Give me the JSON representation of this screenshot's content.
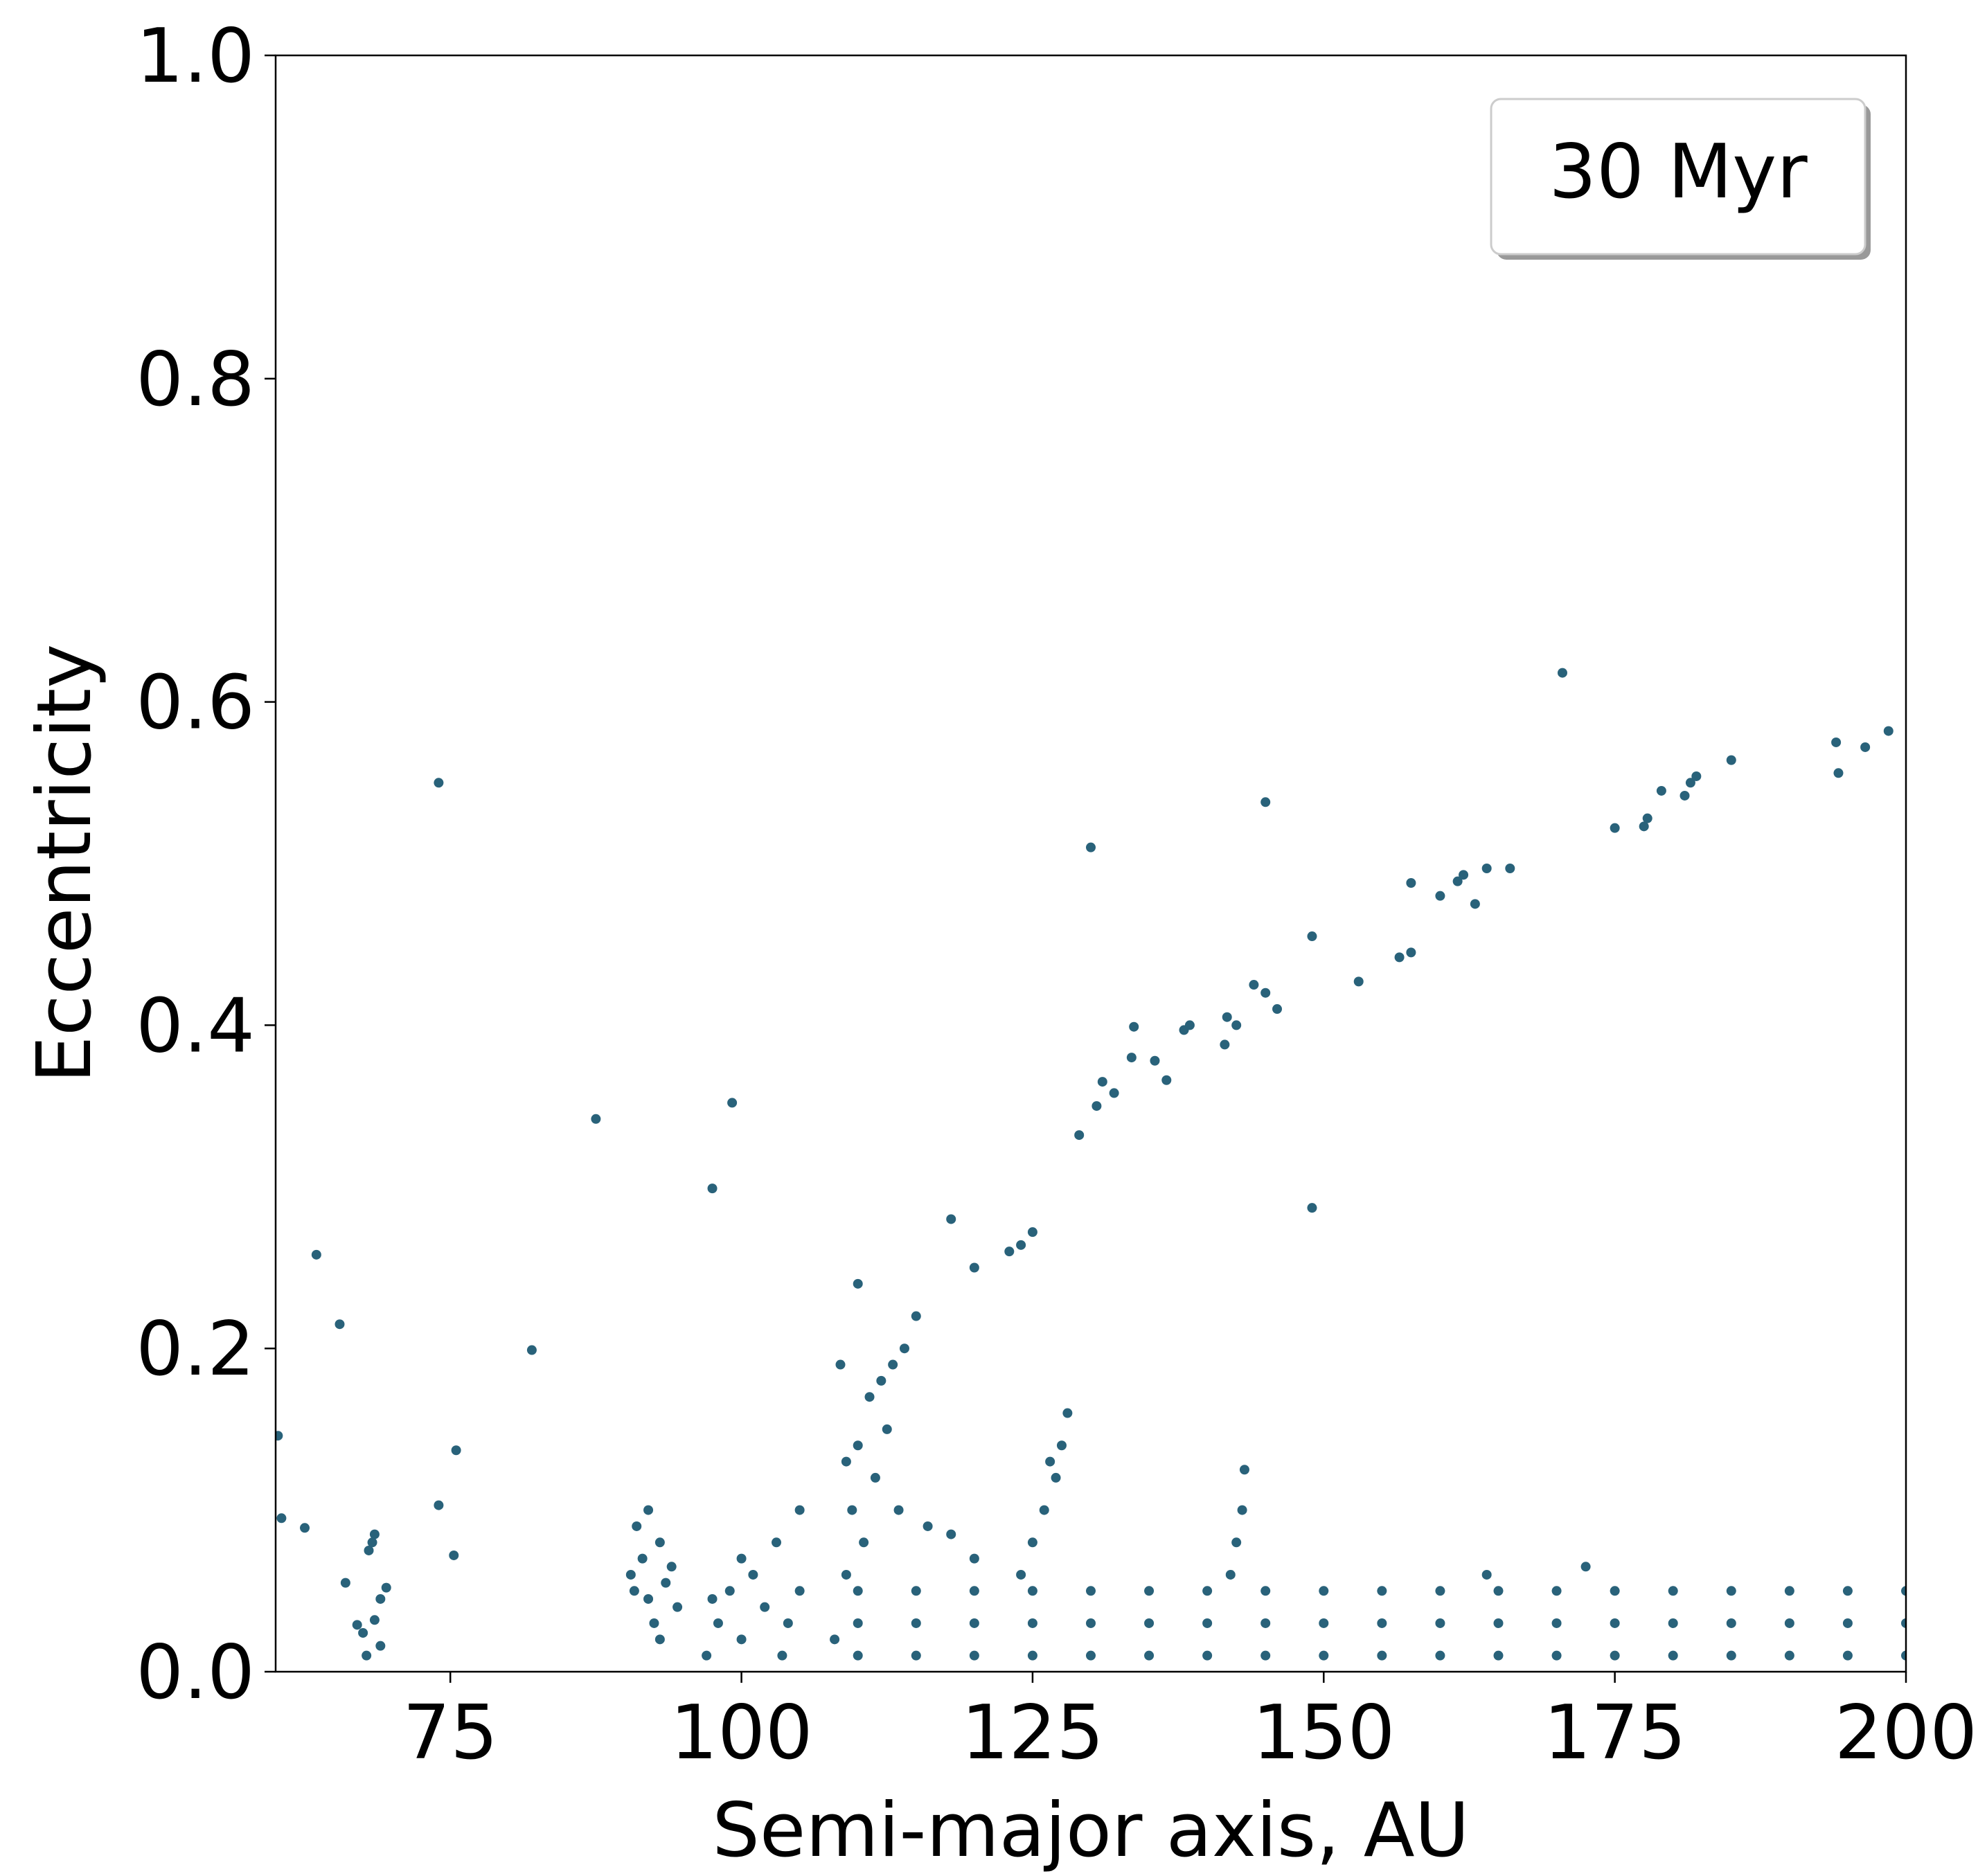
{
  "chart_data": {
    "type": "scatter",
    "xlabel": "Semi-major axis, AU",
    "ylabel": "Eccentricity",
    "xlim": [
      60,
      200
    ],
    "ylim": [
      0,
      1
    ],
    "xticks": [
      75,
      100,
      125,
      150,
      175,
      200
    ],
    "yticks": [
      {
        "value": 0,
        "label": "0.0"
      },
      0.2,
      0.4,
      0.6,
      0.8,
      {
        "value": 1,
        "label": "1.0"
      }
    ],
    "grid": false,
    "legend": "upper right",
    "series": [
      {
        "name": "30 Myr",
        "color": "#29627a",
        "x": [
          60.2,
          60.5,
          62.5,
          63.5,
          65.5,
          74,
          75.5,
          75.3,
          74,
          82,
          87.5,
          97.5,
          99.2,
          118,
          120,
          123,
          124,
          125,
          129,
          130,
          130.5,
          131,
          132,
          133.5,
          133.7,
          135.5,
          136.5,
          138,
          138.5,
          141.5,
          141.7,
          142.5,
          144,
          145,
          145,
          146,
          149,
          149,
          153,
          156.5,
          157.5,
          157.5,
          160,
          161.5,
          162,
          163,
          164,
          166,
          170.5,
          175,
          177.5,
          177.8,
          179,
          181,
          181.5,
          182,
          185,
          194,
          194.2,
          196.5,
          198.5,
          66,
          67,
          67.5,
          68,
          68.3,
          68.5,
          67.8,
          69,
          69.5,
          69,
          68.5,
          90.5,
          91,
          92,
          93,
          92.5,
          93.5,
          94,
          94.5,
          92,
          93,
          91.5,
          90.8,
          110,
          110,
          110,
          115,
          115,
          115,
          120,
          120,
          120,
          125,
          125,
          125,
          130,
          130,
          130,
          135,
          135,
          135,
          140,
          140,
          140,
          145,
          145,
          145,
          150,
          150,
          150,
          155,
          155,
          155,
          160,
          160,
          160,
          165,
          165,
          165,
          170,
          170,
          170,
          175,
          175,
          175,
          180,
          180,
          180,
          185,
          185,
          185,
          190,
          190,
          190,
          195,
          195,
          195,
          200,
          200,
          200,
          97,
          98,
          99,
          100,
          101,
          102,
          103,
          104,
          105,
          100,
          97.5,
          103.5,
          105,
          108,
          109,
          109.5,
          110,
          111,
          112,
          113,
          114,
          110.5,
          111.5,
          112.5,
          113.5,
          109,
          108.5,
          110,
          116,
          118,
          120,
          115,
          124,
          125,
          126,
          127,
          127.5,
          128,
          126.5,
          142,
          142.5,
          143,
          143.2,
          164,
          172.5
        ],
        "values": [
          0.146,
          0.095,
          0.089,
          0.258,
          0.215,
          0.55,
          0.137,
          0.072,
          0.103,
          0.199,
          0.342,
          0.299,
          0.352,
          0.28,
          0.25,
          0.26,
          0.264,
          0.272,
          0.332,
          0.51,
          0.35,
          0.365,
          0.358,
          0.38,
          0.399,
          0.378,
          0.366,
          0.397,
          0.4,
          0.388,
          0.405,
          0.4,
          0.425,
          0.538,
          0.42,
          0.41,
          0.455,
          0.287,
          0.427,
          0.442,
          0.488,
          0.445,
          0.48,
          0.489,
          0.493,
          0.475,
          0.497,
          0.497,
          0.618,
          0.522,
          0.523,
          0.528,
          0.545,
          0.542,
          0.55,
          0.554,
          0.564,
          0.575,
          0.556,
          0.572,
          0.582,
          0.055,
          0.029,
          0.024,
          0.075,
          0.08,
          0.085,
          0.01,
          0.045,
          0.052,
          0.016,
          0.032,
          0.06,
          0.09,
          0.045,
          0.08,
          0.03,
          0.055,
          0.065,
          0.04,
          0.1,
          0.02,
          0.07,
          0.05,
          0.01,
          0.03,
          0.05,
          0.01,
          0.03,
          0.05,
          0.01,
          0.03,
          0.05,
          0.01,
          0.03,
          0.05,
          0.01,
          0.03,
          0.05,
          0.01,
          0.03,
          0.05,
          0.01,
          0.03,
          0.05,
          0.01,
          0.03,
          0.05,
          0.01,
          0.03,
          0.05,
          0.01,
          0.03,
          0.05,
          0.01,
          0.03,
          0.05,
          0.01,
          0.03,
          0.05,
          0.01,
          0.03,
          0.05,
          0.01,
          0.03,
          0.05,
          0.01,
          0.03,
          0.05,
          0.01,
          0.03,
          0.05,
          0.01,
          0.03,
          0.05,
          0.01,
          0.03,
          0.05,
          0.01,
          0.03,
          0.05,
          0.01,
          0.03,
          0.05,
          0.02,
          0.06,
          0.04,
          0.08,
          0.03,
          0.1,
          0.07,
          0.045,
          0.01,
          0.05,
          0.02,
          0.06,
          0.1,
          0.14,
          0.17,
          0.18,
          0.19,
          0.2,
          0.08,
          0.12,
          0.15,
          0.1,
          0.13,
          0.19,
          0.24,
          0.09,
          0.085,
          0.07,
          0.22,
          0.06,
          0.08,
          0.1,
          0.12,
          0.14,
          0.16,
          0.13,
          0.06,
          0.08,
          0.1,
          0.125,
          0.06,
          0.065
        ]
      }
    ]
  }
}
